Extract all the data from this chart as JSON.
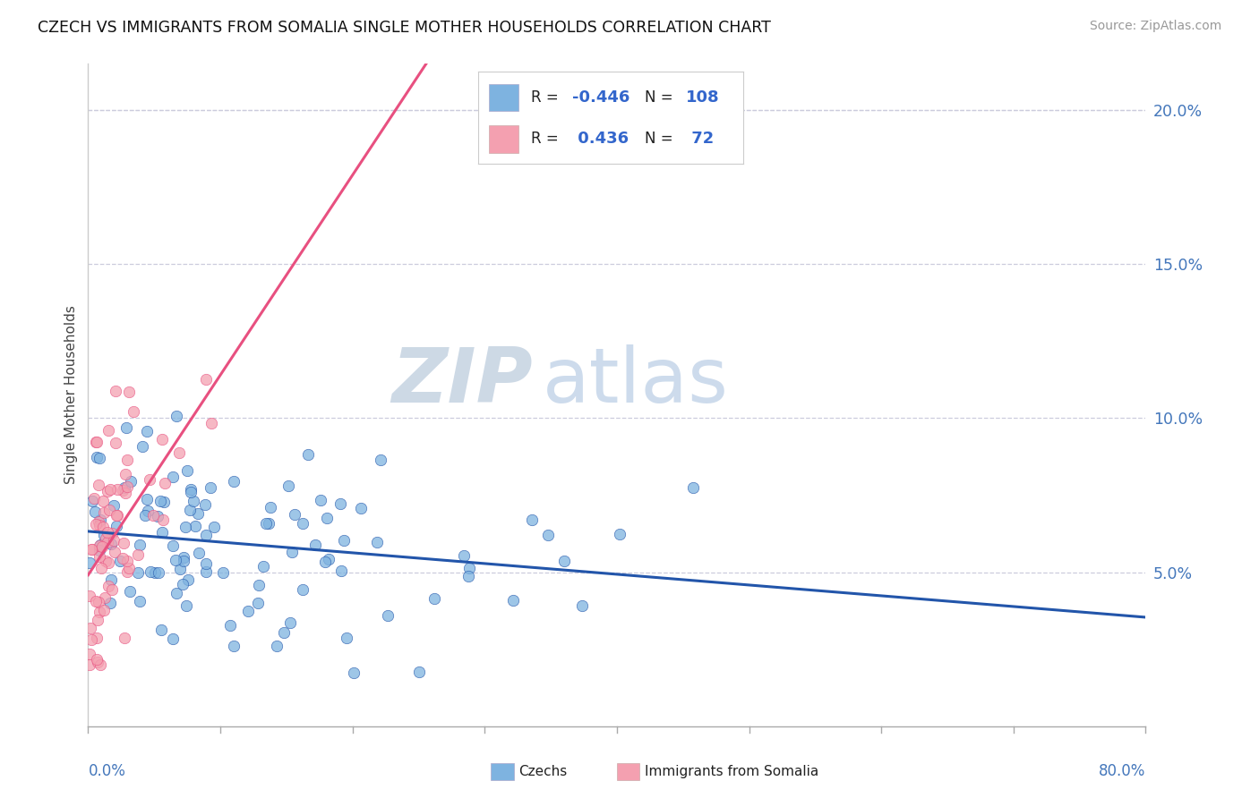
{
  "title": "CZECH VS IMMIGRANTS FROM SOMALIA SINGLE MOTHER HOUSEHOLDS CORRELATION CHART",
  "source": "Source: ZipAtlas.com",
  "ylabel": "Single Mother Households",
  "xlim": [
    0.0,
    0.8
  ],
  "ylim": [
    0.0,
    0.215
  ],
  "ytick_vals": [
    0.05,
    0.1,
    0.15,
    0.2
  ],
  "ytick_labels": [
    "5.0%",
    "10.0%",
    "15.0%",
    "20.0%"
  ],
  "blue_color": "#7EB3E0",
  "pink_color": "#F4A0B0",
  "blue_line_color": "#2255AA",
  "pink_line_color": "#E85080",
  "watermark_zip": "ZIP",
  "watermark_atlas": "atlas",
  "watermark_zip_color": "#C8D5E3",
  "watermark_atlas_color": "#B8CCE4",
  "background_color": "#FFFFFF",
  "grid_color": "#CCCCDD",
  "title_color": "#111111",
  "source_color": "#999999",
  "axis_label_color": "#4477BB",
  "legend_text_color": "#222222",
  "legend_value_color": "#3366CC",
  "bottom_spine_color": "#AAAAAA",
  "left_spine_color": "#CCCCCC"
}
